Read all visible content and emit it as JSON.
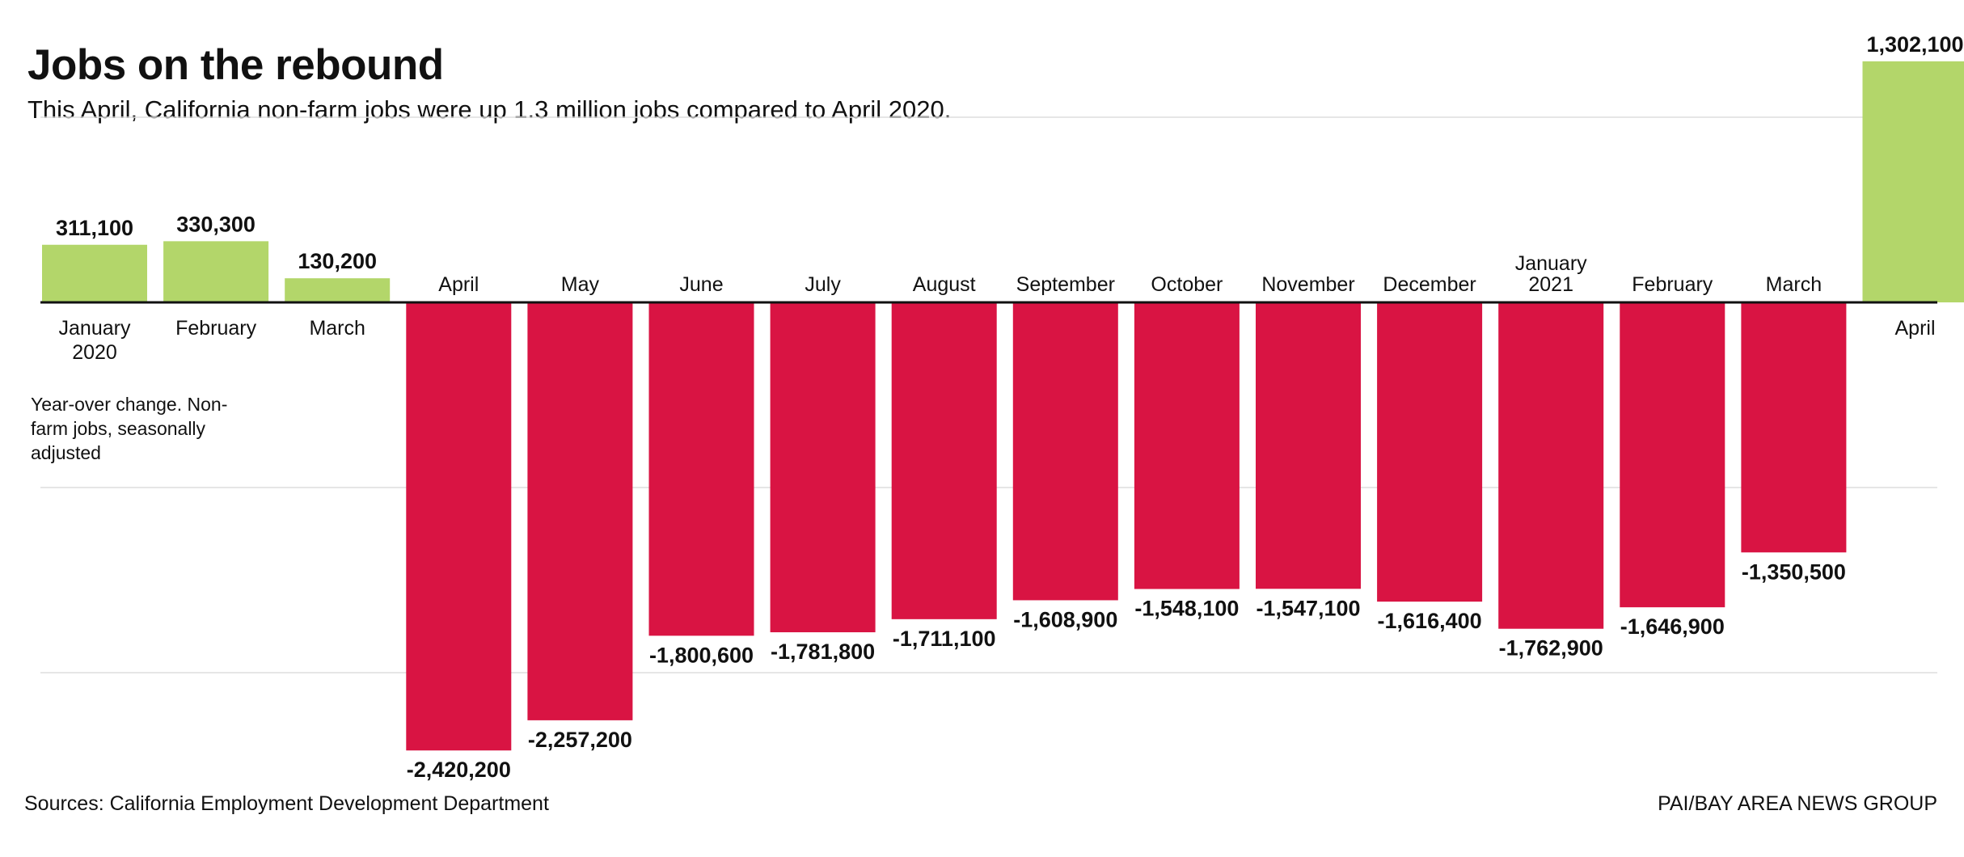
{
  "chart_data": {
    "type": "bar",
    "title": "Jobs on the rebound",
    "subtitle": "This April, California non-farm jobs were up 1.3 million jobs compared to April 2020.",
    "note": "Year-over change. Non-farm jobs, seasonally adjusted",
    "source": "Sources: California Employment Development Department",
    "credit": "PAI/BAY AREA NEWS GROUP",
    "categories": [
      [
        "January",
        "2020"
      ],
      [
        "February"
      ],
      [
        "March"
      ],
      [
        "April"
      ],
      [
        "May"
      ],
      [
        "June"
      ],
      [
        "July"
      ],
      [
        "August"
      ],
      [
        "September"
      ],
      [
        "October"
      ],
      [
        "November"
      ],
      [
        "December"
      ],
      [
        "January",
        "2021"
      ],
      [
        "February"
      ],
      [
        "March"
      ],
      [
        "April"
      ]
    ],
    "values": [
      311100,
      330300,
      130200,
      -2420200,
      -2257200,
      -1800600,
      -1781800,
      -1711100,
      -1608900,
      -1548100,
      -1547100,
      -1616400,
      -1762900,
      -1646900,
      -1350500,
      1302100
    ],
    "value_labels": [
      "311,100",
      "330,300",
      "130,200",
      "-2,420,200",
      "-2,257,200",
      "-1,800,600",
      "-1,781,800",
      "-1,711,100",
      "-1,608,900",
      "-1,548,100",
      "-1,547,100",
      "-1,616,400",
      "-1,762,900",
      "-1,646,900",
      "-1,350,500",
      "1,302,100"
    ],
    "ylim": [
      -2500000,
      1400000
    ],
    "grid_values": [
      1000000,
      -1000000,
      -2000000
    ],
    "grid": true,
    "colors": {
      "positive": "#b3d66a",
      "negative": "#d91443",
      "grid": "#dddddd",
      "axis": "#111111"
    }
  }
}
